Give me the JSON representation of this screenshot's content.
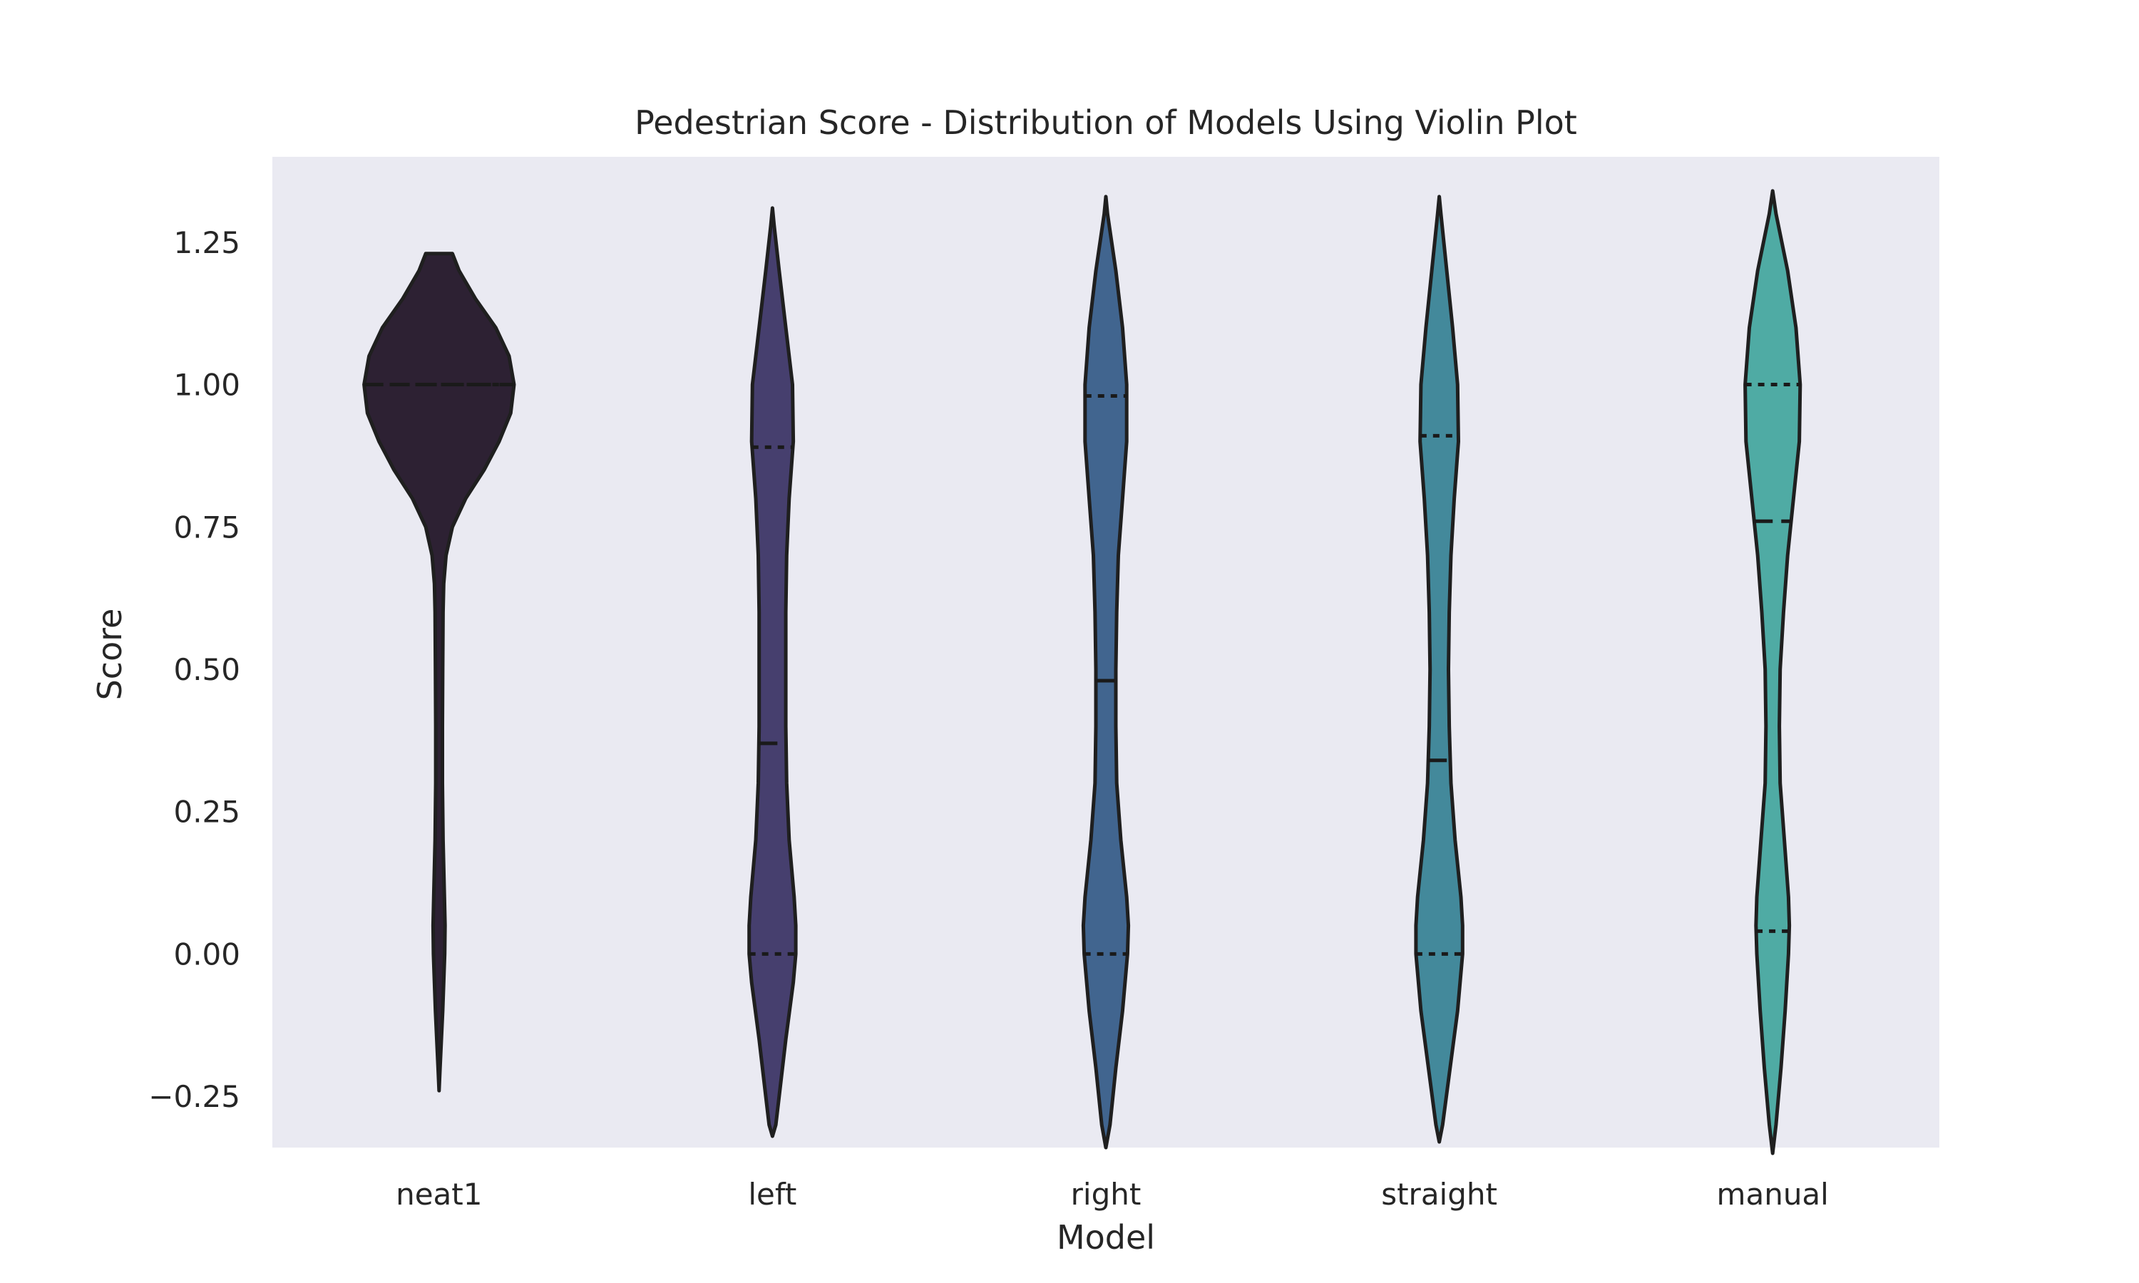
{
  "chart_data": {
    "type": "violin",
    "title": "Pedestrian Score - Distribution of Models Using Violin Plot",
    "xlabel": "Model",
    "ylabel": "Score",
    "ylim": [
      -0.34,
      1.4
    ],
    "yticks": [
      {
        "value": -0.25,
        "label": "−0.25"
      },
      {
        "value": 0.0,
        "label": "0.00"
      },
      {
        "value": 0.25,
        "label": "0.25"
      },
      {
        "value": 0.5,
        "label": "0.50"
      },
      {
        "value": 0.75,
        "label": "0.75"
      },
      {
        "value": 1.0,
        "label": "1.00"
      },
      {
        "value": 1.25,
        "label": "1.25"
      }
    ],
    "grid": false,
    "inner": "quartile",
    "categories": [
      "neat1",
      "left",
      "right",
      "straight",
      "manual"
    ],
    "series": [
      {
        "category": "neat1",
        "color": "#2d2133",
        "range": [
          -0.24,
          1.23
        ],
        "quartiles": {
          "q1": 1.0,
          "median": 1.0,
          "q3": 1.0
        },
        "profile": [
          [
            -0.24,
            0.0
          ],
          [
            -0.2,
            0.006
          ],
          [
            -0.1,
            0.022
          ],
          [
            0.0,
            0.034
          ],
          [
            0.05,
            0.036
          ],
          [
            0.1,
            0.032
          ],
          [
            0.2,
            0.024
          ],
          [
            0.3,
            0.02
          ],
          [
            0.4,
            0.02
          ],
          [
            0.5,
            0.022
          ],
          [
            0.6,
            0.024
          ],
          [
            0.65,
            0.028
          ],
          [
            0.7,
            0.042
          ],
          [
            0.75,
            0.08
          ],
          [
            0.8,
            0.16
          ],
          [
            0.85,
            0.27
          ],
          [
            0.9,
            0.36
          ],
          [
            0.95,
            0.43
          ],
          [
            1.0,
            0.45
          ],
          [
            1.05,
            0.42
          ],
          [
            1.1,
            0.34
          ],
          [
            1.15,
            0.22
          ],
          [
            1.2,
            0.12
          ],
          [
            1.23,
            0.08
          ]
        ]
      },
      {
        "category": "left",
        "color": "#463f6e",
        "range": [
          -0.32,
          1.31
        ],
        "quartiles": {
          "q1": 0.0,
          "median": 0.37,
          "q3": 0.89
        },
        "profile": [
          [
            -0.32,
            0.0
          ],
          [
            -0.3,
            0.02
          ],
          [
            -0.25,
            0.04
          ],
          [
            -0.15,
            0.08
          ],
          [
            -0.05,
            0.125
          ],
          [
            0.0,
            0.14
          ],
          [
            0.05,
            0.14
          ],
          [
            0.1,
            0.13
          ],
          [
            0.2,
            0.1
          ],
          [
            0.3,
            0.085
          ],
          [
            0.4,
            0.08
          ],
          [
            0.5,
            0.08
          ],
          [
            0.6,
            0.08
          ],
          [
            0.7,
            0.085
          ],
          [
            0.8,
            0.1
          ],
          [
            0.9,
            0.125
          ],
          [
            1.0,
            0.12
          ],
          [
            1.1,
            0.08
          ],
          [
            1.2,
            0.04
          ],
          [
            1.28,
            0.01
          ],
          [
            1.31,
            0.0
          ]
        ]
      },
      {
        "category": "right",
        "color": "#41658f",
        "range": [
          -0.34,
          1.33
        ],
        "quartiles": {
          "q1": 0.0,
          "median": 0.48,
          "q3": 0.98
        },
        "profile": [
          [
            -0.34,
            0.0
          ],
          [
            -0.3,
            0.025
          ],
          [
            -0.2,
            0.06
          ],
          [
            -0.1,
            0.1
          ],
          [
            0.0,
            0.13
          ],
          [
            0.05,
            0.135
          ],
          [
            0.1,
            0.125
          ],
          [
            0.2,
            0.09
          ],
          [
            0.3,
            0.065
          ],
          [
            0.4,
            0.06
          ],
          [
            0.5,
            0.06
          ],
          [
            0.6,
            0.065
          ],
          [
            0.7,
            0.075
          ],
          [
            0.8,
            0.1
          ],
          [
            0.9,
            0.125
          ],
          [
            1.0,
            0.125
          ],
          [
            1.1,
            0.1
          ],
          [
            1.2,
            0.06
          ],
          [
            1.3,
            0.01
          ],
          [
            1.33,
            0.0
          ]
        ]
      },
      {
        "category": "straight",
        "color": "#43899b",
        "range": [
          -0.33,
          1.33
        ],
        "quartiles": {
          "q1": 0.0,
          "median": 0.34,
          "q3": 0.91
        },
        "profile": [
          [
            -0.33,
            0.0
          ],
          [
            -0.3,
            0.02
          ],
          [
            -0.2,
            0.065
          ],
          [
            -0.1,
            0.11
          ],
          [
            0.0,
            0.14
          ],
          [
            0.05,
            0.14
          ],
          [
            0.1,
            0.13
          ],
          [
            0.2,
            0.095
          ],
          [
            0.3,
            0.07
          ],
          [
            0.4,
            0.06
          ],
          [
            0.5,
            0.055
          ],
          [
            0.6,
            0.06
          ],
          [
            0.7,
            0.07
          ],
          [
            0.8,
            0.09
          ],
          [
            0.9,
            0.115
          ],
          [
            1.0,
            0.11
          ],
          [
            1.1,
            0.08
          ],
          [
            1.2,
            0.045
          ],
          [
            1.3,
            0.01
          ],
          [
            1.33,
            0.0
          ]
        ]
      },
      {
        "category": "manual",
        "color": "#4faba4",
        "range": [
          -0.35,
          1.34
        ],
        "quartiles": {
          "q1": 0.04,
          "median": 0.76,
          "q3": 1.0
        },
        "profile": [
          [
            -0.35,
            0.0
          ],
          [
            -0.3,
            0.02
          ],
          [
            -0.2,
            0.05
          ],
          [
            -0.1,
            0.075
          ],
          [
            0.0,
            0.095
          ],
          [
            0.05,
            0.1
          ],
          [
            0.1,
            0.095
          ],
          [
            0.2,
            0.07
          ],
          [
            0.3,
            0.045
          ],
          [
            0.4,
            0.04
          ],
          [
            0.5,
            0.045
          ],
          [
            0.6,
            0.065
          ],
          [
            0.7,
            0.09
          ],
          [
            0.8,
            0.125
          ],
          [
            0.9,
            0.16
          ],
          [
            1.0,
            0.165
          ],
          [
            1.1,
            0.14
          ],
          [
            1.2,
            0.09
          ],
          [
            1.3,
            0.02
          ],
          [
            1.34,
            0.0
          ]
        ]
      }
    ]
  }
}
